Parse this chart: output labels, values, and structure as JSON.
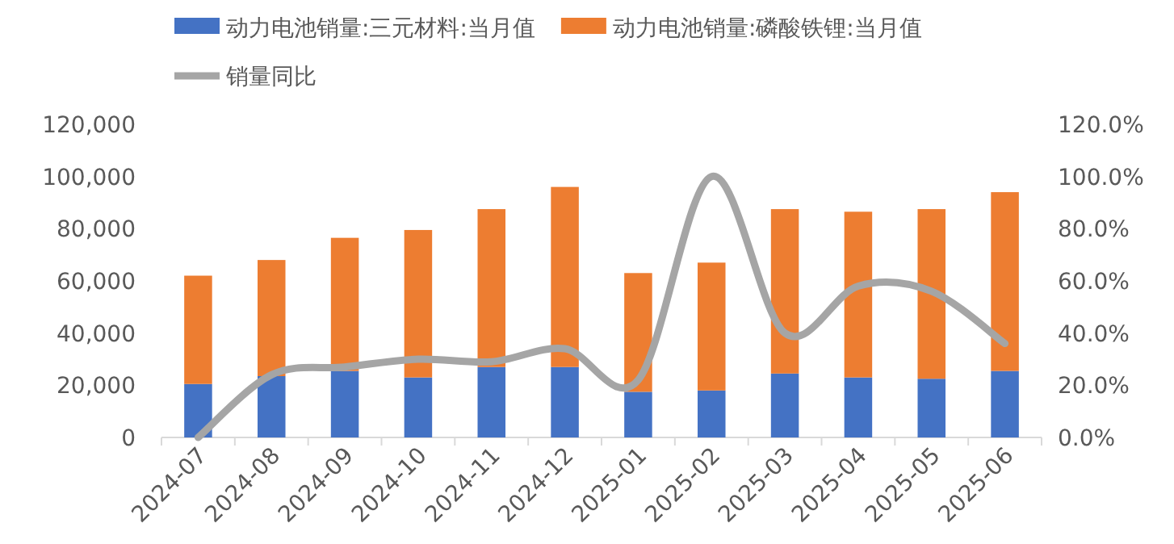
{
  "chart_data": {
    "type": "bar",
    "stacked": true,
    "categories": [
      "2024-07",
      "2024-08",
      "2024-09",
      "2024-10",
      "2024-11",
      "2024-12",
      "2025-01",
      "2025-02",
      "2025-03",
      "2025-04",
      "2025-05",
      "2025-06"
    ],
    "series": [
      {
        "name": "动力电池销量:三元材料:当月值",
        "color": "#4472c4",
        "values": [
          20500,
          23500,
          25500,
          23000,
          27000,
          27000,
          17500,
          18000,
          24500,
          23000,
          22500,
          25500
        ]
      },
      {
        "name": "动力电池销量:磷酸铁锂:当月值",
        "color": "#ed7d31",
        "values": [
          41500,
          44500,
          51000,
          56500,
          60500,
          69000,
          45500,
          49000,
          63000,
          63500,
          65000,
          68500
        ]
      },
      {
        "name": "销量同比",
        "type": "line",
        "axis": "y2",
        "color": "#a5a5a5",
        "values": [
          0,
          24,
          27,
          30,
          29,
          34,
          22,
          100,
          40,
          58,
          56,
          36
        ]
      }
    ],
    "ylim": [
      0,
      120000
    ],
    "yticks": [
      {
        "value": 0,
        "label": "0"
      },
      {
        "value": 20000,
        "label": "20,000"
      },
      {
        "value": 40000,
        "label": "40,000"
      },
      {
        "value": 60000,
        "label": "60,000"
      },
      {
        "value": 80000,
        "label": "80,000"
      },
      {
        "value": 100000,
        "label": "100,000"
      },
      {
        "value": 120000,
        "label": "120,000"
      }
    ],
    "y2lim": [
      0,
      120
    ],
    "y2ticks": [
      {
        "value": 0,
        "label": "0.0%"
      },
      {
        "value": 20,
        "label": "20.0%"
      },
      {
        "value": 40,
        "label": "40.0%"
      },
      {
        "value": 60,
        "label": "60.0%"
      },
      {
        "value": 80,
        "label": "80.0%"
      },
      {
        "value": 100,
        "label": "100.0%"
      },
      {
        "value": 120,
        "label": "120.0%"
      }
    ],
    "legend": "top",
    "grid": false
  }
}
